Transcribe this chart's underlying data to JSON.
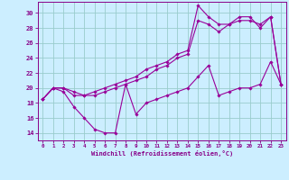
{
  "background_color": "#cceeff",
  "grid_color": "#99cccc",
  "line_color": "#990099",
  "marker_color": "#990099",
  "xlabel": "Windchill (Refroidissement éolien,°C)",
  "xlabel_color": "#880088",
  "tick_color": "#880088",
  "xlim": [
    -0.5,
    23.5
  ],
  "ylim": [
    13,
    31.5
  ],
  "yticks": [
    14,
    16,
    18,
    20,
    22,
    24,
    26,
    28,
    30
  ],
  "xticks": [
    0,
    1,
    2,
    3,
    4,
    5,
    6,
    7,
    8,
    9,
    10,
    11,
    12,
    13,
    14,
    15,
    16,
    17,
    18,
    19,
    20,
    21,
    22,
    23
  ],
  "series1_x": [
    0,
    1,
    2,
    3,
    4,
    5,
    6,
    7,
    8,
    9,
    10,
    11,
    12,
    13,
    14,
    15,
    16,
    17,
    18,
    19,
    20,
    21,
    22,
    23
  ],
  "series1_y": [
    18.5,
    20.0,
    19.5,
    17.5,
    16.0,
    14.5,
    14.0,
    14.0,
    20.5,
    16.5,
    18.0,
    18.5,
    19.0,
    19.5,
    20.0,
    21.5,
    23.0,
    19.0,
    19.5,
    20.0,
    20.0,
    20.5,
    23.5,
    20.5
  ],
  "series2_x": [
    0,
    1,
    2,
    3,
    4,
    5,
    6,
    7,
    8,
    9,
    10,
    11,
    12,
    13,
    14,
    15,
    16,
    17,
    18,
    19,
    20,
    21,
    22,
    23
  ],
  "series2_y": [
    18.5,
    20.0,
    20.0,
    19.0,
    19.0,
    19.0,
    19.5,
    20.0,
    20.5,
    21.0,
    21.5,
    22.5,
    23.0,
    24.0,
    24.5,
    29.0,
    28.5,
    27.5,
    28.5,
    29.0,
    29.0,
    28.5,
    29.5,
    20.5
  ],
  "series3_x": [
    0,
    1,
    2,
    3,
    4,
    5,
    6,
    7,
    8,
    9,
    10,
    11,
    12,
    13,
    14,
    15,
    16,
    17,
    18,
    19,
    20,
    21,
    22,
    23
  ],
  "series3_y": [
    18.5,
    20.0,
    20.0,
    19.5,
    19.0,
    19.5,
    20.0,
    20.5,
    21.0,
    21.5,
    22.5,
    23.0,
    23.5,
    24.5,
    25.0,
    31.0,
    29.5,
    28.5,
    28.5,
    29.5,
    29.5,
    28.0,
    29.5,
    20.5
  ]
}
